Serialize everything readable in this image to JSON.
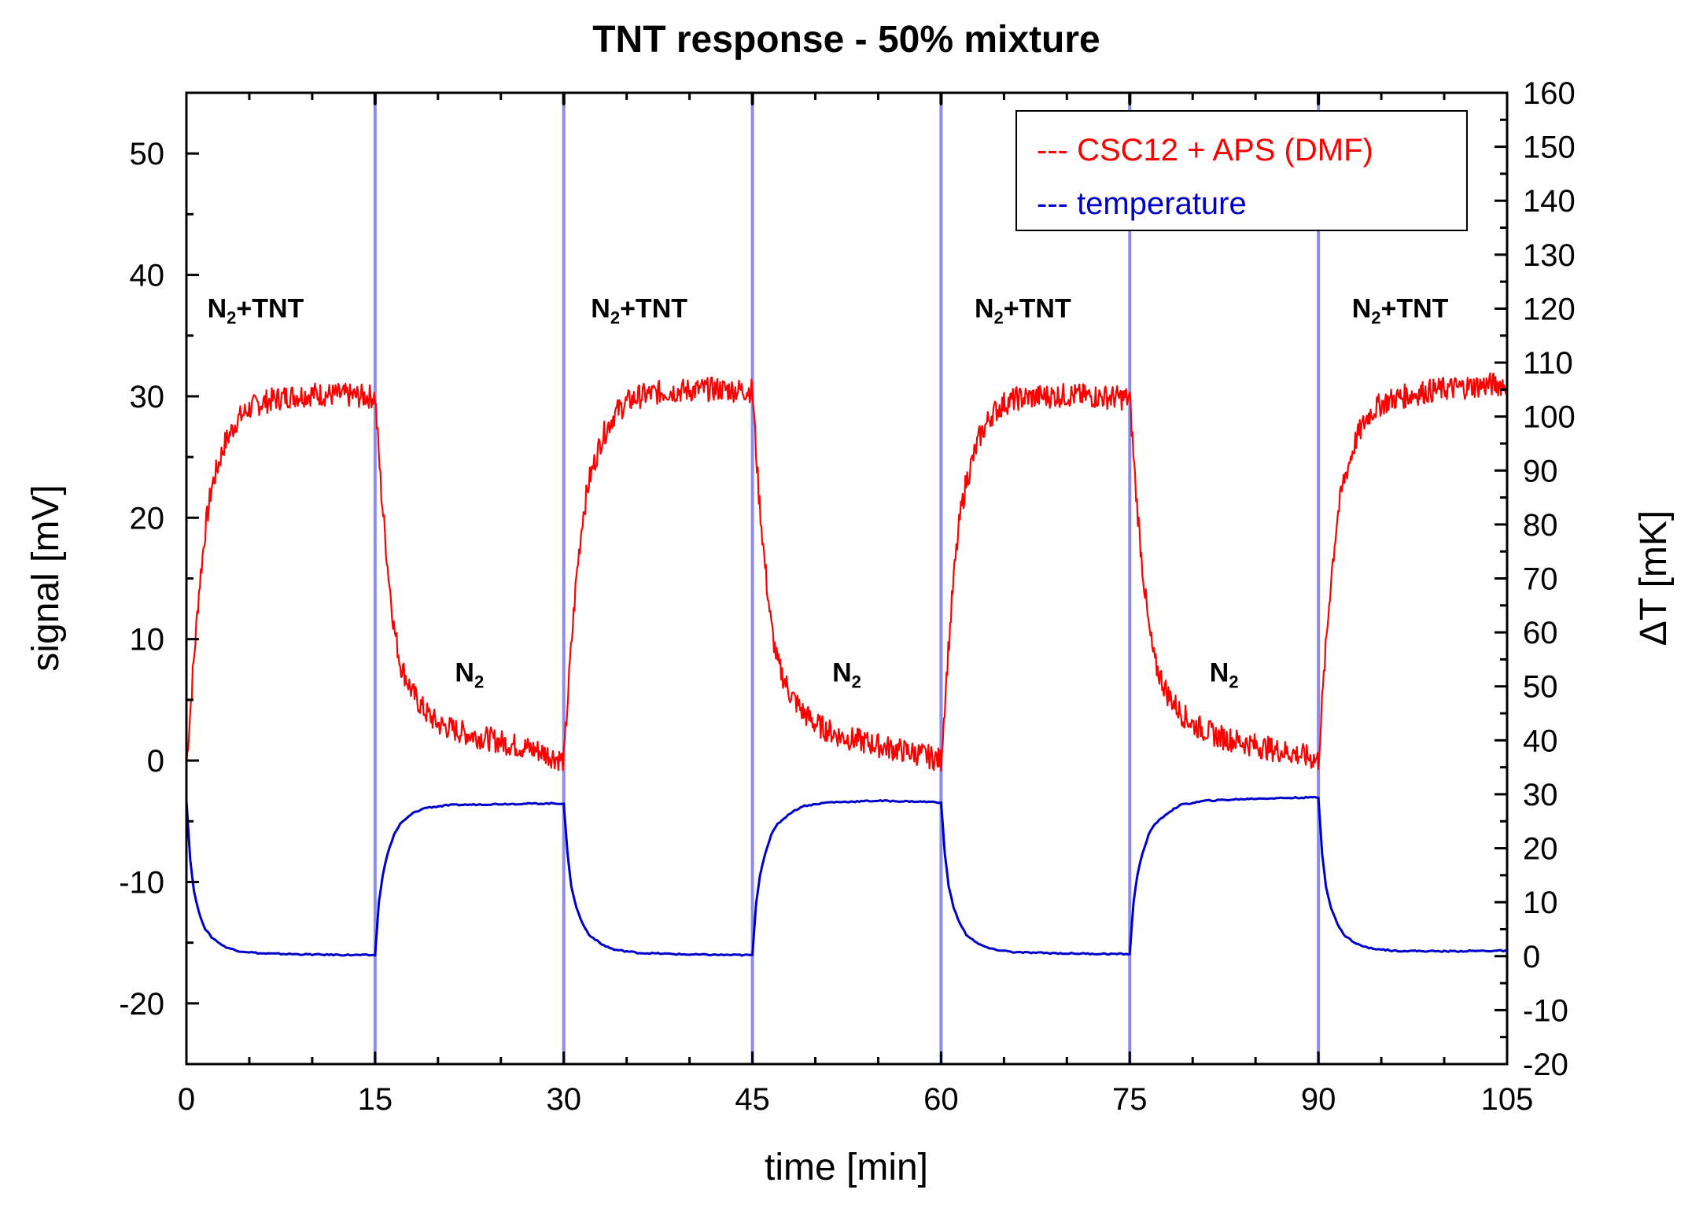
{
  "chart_data": {
    "type": "line",
    "title": "TNT response - 50% mixture",
    "xlabel": "time [min]",
    "ylabel": "signal [mV]",
    "y2label": "ΔT [mK]",
    "xlim": [
      0,
      105
    ],
    "ylim": [
      -25,
      55
    ],
    "y2lim": [
      -20,
      160
    ],
    "xticks": [
      0,
      15,
      30,
      45,
      60,
      75,
      90,
      105
    ],
    "yticks": [
      -20,
      -10,
      0,
      10,
      20,
      30,
      40,
      50
    ],
    "y2ticks": [
      -20,
      -10,
      0,
      10,
      20,
      30,
      40,
      50,
      60,
      70,
      80,
      90,
      100,
      110,
      120,
      130,
      140,
      150,
      160
    ],
    "switch_times": [
      15,
      30,
      45,
      60,
      75,
      90
    ],
    "region_labels": [
      {
        "main": "N",
        "sub": "2",
        "rest": "+TNT",
        "x": 5.5,
        "y": 36.5
      },
      {
        "main": "N",
        "sub": "2",
        "rest": "",
        "x": 22.5,
        "y": 6.5
      },
      {
        "main": "N",
        "sub": "2",
        "rest": "+TNT",
        "x": 36,
        "y": 36.5
      },
      {
        "main": "N",
        "sub": "2",
        "rest": "",
        "x": 52.5,
        "y": 6.5
      },
      {
        "main": "N",
        "sub": "2",
        "rest": "+TNT",
        "x": 66.5,
        "y": 36.5
      },
      {
        "main": "N",
        "sub": "2",
        "rest": "",
        "x": 82.5,
        "y": 6.5
      },
      {
        "main": "N",
        "sub": "2",
        "rest": "+TNT",
        "x": 96.5,
        "y": 36.5
      }
    ],
    "legend": {
      "position": "top-right",
      "entries": [
        {
          "label": "--- CSC12 + APS (DMF)",
          "color": "#ff0000"
        },
        {
          "label": "--- temperature",
          "color": "#0000cc"
        }
      ]
    },
    "series": [
      {
        "name": "CSC12 + APS (DMF)",
        "axis": "left",
        "color": "#ff0000",
        "x": [
          0,
          0.5,
          1,
          1.5,
          2,
          3,
          4,
          5,
          6,
          8,
          10,
          12,
          14,
          15,
          15.5,
          16,
          16.5,
          17,
          18,
          19,
          20,
          22,
          24,
          26,
          28,
          29.5,
          30,
          30.5,
          31,
          31.5,
          32,
          33,
          34,
          35,
          36,
          38,
          40,
          42,
          44,
          45,
          45.5,
          46,
          46.5,
          47,
          48,
          49,
          50,
          52,
          54,
          56,
          58,
          59.5,
          60,
          60.5,
          61,
          61.5,
          62,
          63,
          64,
          65,
          66,
          68,
          70,
          72,
          74,
          75,
          75.5,
          76,
          76.5,
          77,
          78,
          79,
          80,
          82,
          84,
          86,
          88,
          89.5,
          90,
          90.5,
          91,
          91.5,
          92,
          93,
          94,
          95,
          96,
          98,
          100,
          102,
          104,
          105
        ],
        "values": [
          -0.5,
          7,
          14,
          19,
          22.5,
          26,
          28,
          29,
          29.5,
          30,
          30.2,
          30.1,
          30,
          30,
          22,
          16,
          11,
          8,
          5.5,
          4,
          3,
          2.3,
          1.8,
          1.3,
          0.8,
          0.2,
          0,
          8,
          15,
          20,
          23,
          26.5,
          28.5,
          29.5,
          30,
          30.4,
          30.5,
          30.6,
          30.5,
          30.5,
          22,
          16,
          11,
          8,
          5.5,
          4,
          3,
          2,
          1.5,
          1,
          0.6,
          0.2,
          0,
          8,
          15,
          20,
          23,
          26.5,
          28.5,
          29.4,
          29.8,
          30,
          30.1,
          30,
          29.9,
          29.8,
          22,
          16,
          11,
          8,
          5.5,
          4,
          3,
          2,
          1.5,
          1,
          0.6,
          0.2,
          0,
          8,
          15,
          20,
          23,
          26.5,
          28.5,
          29.4,
          29.8,
          30.3,
          30.6,
          30.8,
          31,
          31
        ]
      },
      {
        "name": "temperature",
        "axis": "right",
        "color": "#0000cc",
        "x": [
          0,
          0.3,
          0.6,
          1,
          1.5,
          2,
          3,
          4,
          6,
          10,
          14,
          15,
          15.3,
          15.6,
          16,
          16.5,
          17,
          18,
          19,
          21,
          25,
          29,
          30,
          30.3,
          30.6,
          31,
          31.5,
          32,
          33,
          34,
          36,
          40,
          44,
          45,
          45.3,
          45.6,
          46,
          46.5,
          47,
          48,
          49,
          51,
          55,
          59,
          60,
          60.3,
          60.6,
          61,
          61.5,
          62,
          63,
          64,
          66,
          70,
          74,
          75,
          75.3,
          75.6,
          76,
          76.5,
          77,
          78,
          79,
          81,
          85,
          89,
          90,
          90.3,
          90.6,
          91,
          91.5,
          92,
          93,
          94,
          96,
          100,
          104,
          105
        ],
        "values": [
          29,
          18,
          12,
          8,
          5,
          3.5,
          1.8,
          1,
          0.5,
          0.3,
          0.2,
          0.2,
          10,
          15,
          19,
          22.5,
          24.5,
          26.5,
          27.5,
          28,
          28.2,
          28.3,
          28.3,
          19,
          13,
          9,
          6,
          4,
          2.2,
          1.2,
          0.6,
          0.3,
          0.2,
          0.2,
          10,
          15,
          19,
          22.5,
          24.5,
          26.5,
          27.8,
          28.5,
          28.8,
          28.6,
          28.5,
          19,
          13,
          9,
          6,
          4,
          2.2,
          1.3,
          0.7,
          0.5,
          0.4,
          0.4,
          10,
          15,
          19,
          22.5,
          24.5,
          26.5,
          28,
          28.8,
          29.2,
          29.4,
          29.4,
          19,
          13,
          9,
          6,
          4,
          2.3,
          1.5,
          1,
          0.9,
          1,
          1
        ]
      }
    ]
  }
}
